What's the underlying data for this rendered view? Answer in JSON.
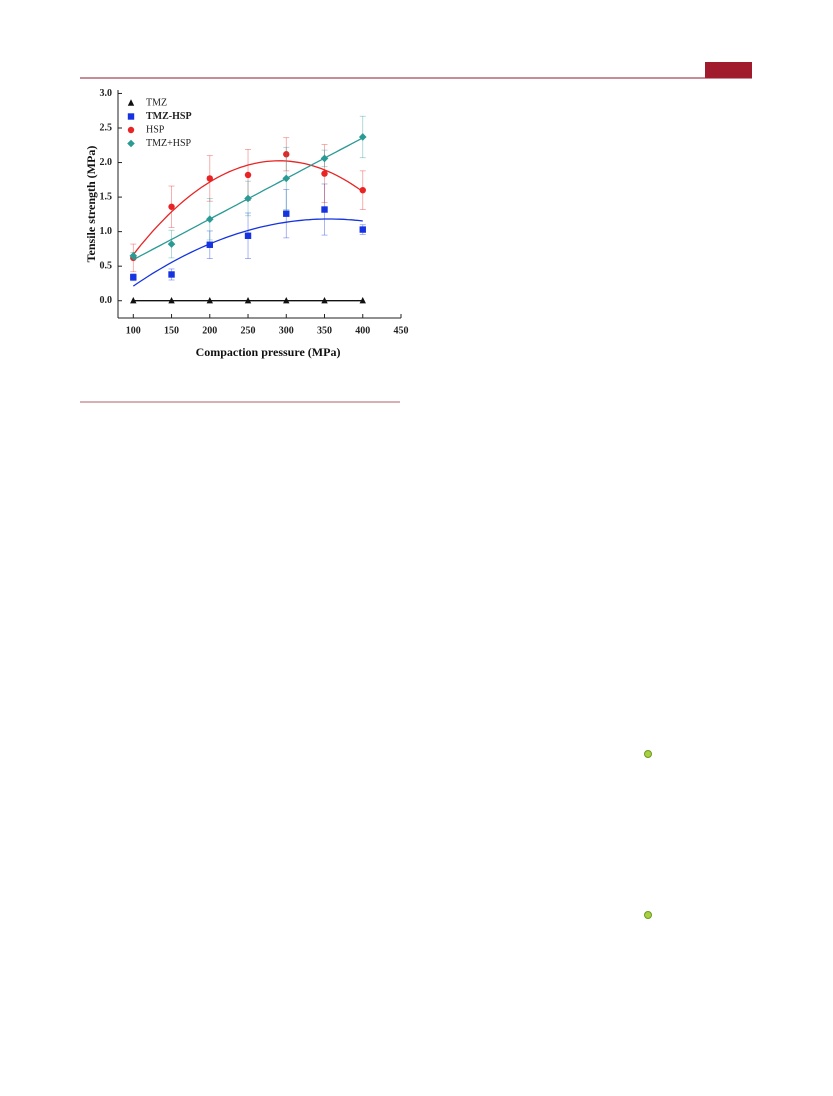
{
  "chart_data": {
    "type": "scatter",
    "xlabel": "Compaction pressure (MPa)",
    "ylabel": "Tensile strength (MPa)",
    "x": [
      100,
      150,
      200,
      250,
      300,
      350,
      400
    ],
    "xlim": [
      80,
      450
    ],
    "xticks": [
      100,
      150,
      200,
      250,
      300,
      350,
      400,
      450
    ],
    "ylim": [
      -0.25,
      3.05
    ],
    "yticks": [
      {
        "value": 0,
        "label": "0.0"
      },
      0.5,
      {
        "value": 1,
        "label": "1.0"
      },
      1.5,
      {
        "value": 2,
        "label": "2.0"
      },
      2.5,
      {
        "value": 3,
        "label": "3.0"
      }
    ],
    "legend": "upper left",
    "series": [
      {
        "name": "TMZ",
        "color": "#111111",
        "marker": "triangle",
        "fit": "linear",
        "values": [
          0,
          0,
          0,
          0,
          0,
          0,
          0
        ]
      },
      {
        "name": "TMZ-HSP",
        "color": "#1533e0",
        "marker": "square",
        "fit": "quadratic",
        "values": [
          0.34,
          0.38,
          0.81,
          0.94,
          1.26,
          1.32,
          1.03
        ],
        "errors": [
          0.05,
          0.08,
          0.2,
          0.33,
          0.35,
          0.37,
          0.07
        ]
      },
      {
        "name": "HSP",
        "color": "#e82424",
        "marker": "circle",
        "fit": "quadratic",
        "values": [
          0.62,
          1.36,
          1.77,
          1.82,
          2.12,
          1.84,
          1.6
        ],
        "errors": [
          0.2,
          0.3,
          0.33,
          0.37,
          0.24,
          0.42,
          0.28
        ]
      },
      {
        "name": "TMZ+HSP",
        "color": "#2a9a95",
        "marker": "diamond",
        "fit": "linear",
        "values": [
          0.65,
          0.82,
          1.18,
          1.48,
          1.77,
          2.06,
          2.37
        ],
        "errors": [
          0.05,
          0.2,
          0.3,
          0.25,
          0.45,
          0.12,
          0.3
        ]
      }
    ]
  }
}
